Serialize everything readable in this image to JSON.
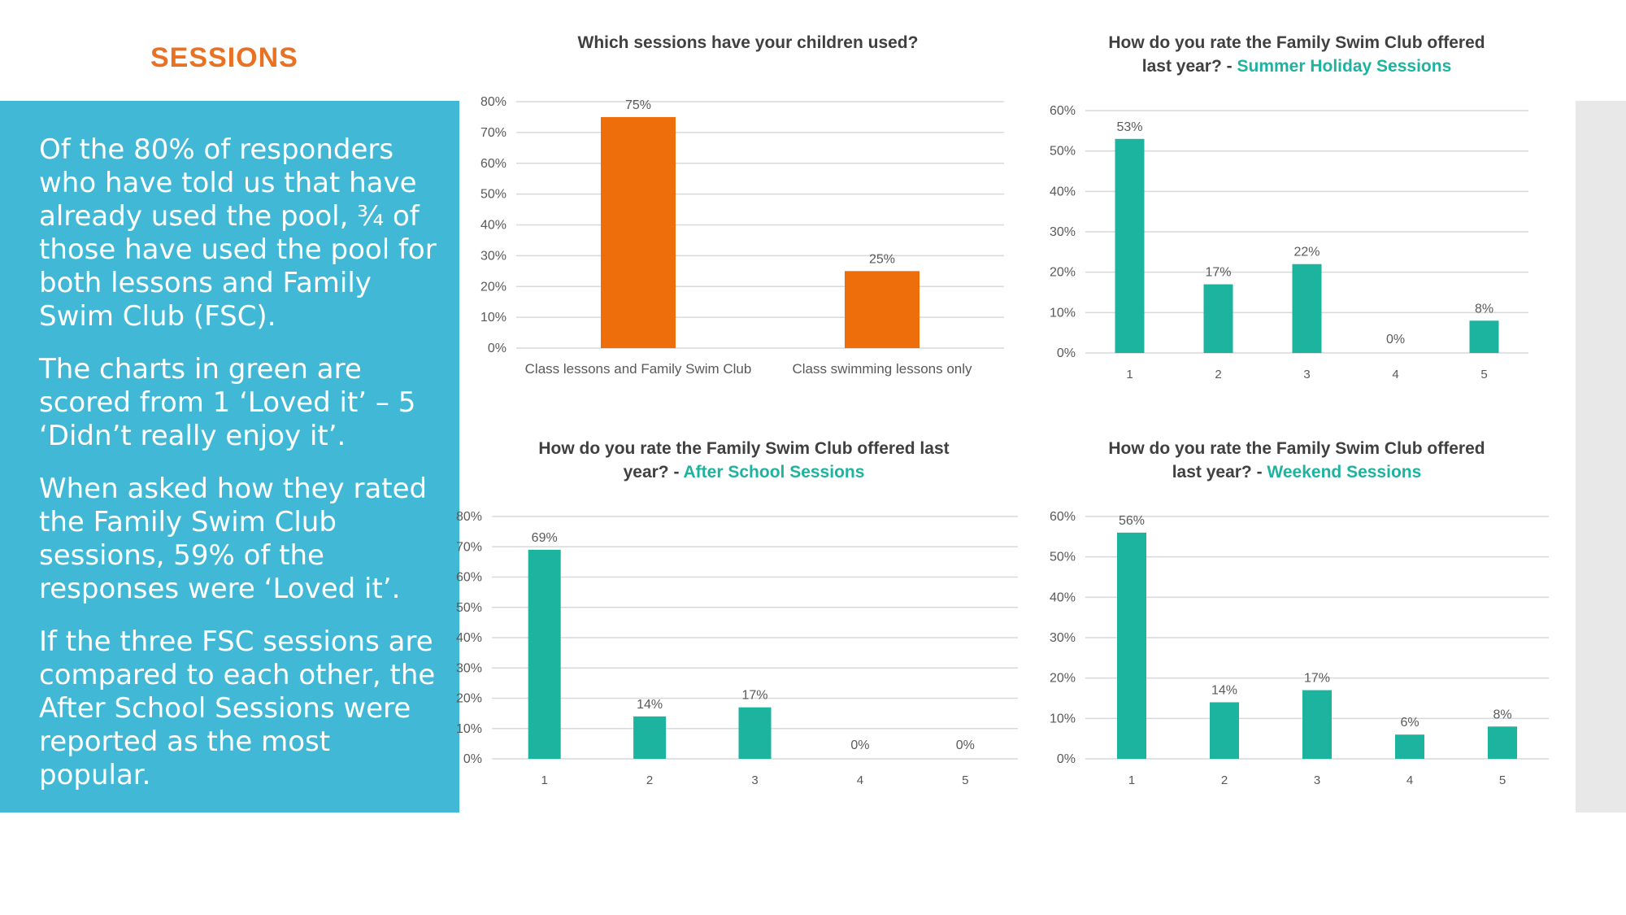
{
  "section_title": "SESSIONS",
  "colors": {
    "title_orange": "#E97124",
    "panel_blue": "#41B8D5",
    "bar_orange": "#ED6E0A",
    "bar_teal": "#1CB39F",
    "accent_teal": "#1CB39F",
    "strip_grey": "#E8E8E8"
  },
  "side_panel": {
    "paragraphs": [
      "Of the 80% of responders who have told us that have already used the pool, ¾ of those have used the pool for both lessons and Family Swim Club (FSC).",
      "The charts in green are scored from 1 ‘Loved it’ – 5 ‘Didn’t really enjoy it’.",
      "When asked how they rated the Family Swim Club sessions, 59% of the responses were ‘Loved it’.",
      "If the three FSC sessions are compared to each other, the After School Sessions were reported as the most popular."
    ]
  },
  "chart_data": [
    {
      "type": "bar",
      "title": "Which sessions have your children used?",
      "title_accent": "",
      "categories": [
        "Class lessons and Family Swim Club",
        "Class swimming lessons only"
      ],
      "values": [
        75,
        25
      ],
      "data_labels": [
        "75%",
        "25%"
      ],
      "ylim": [
        0,
        80
      ],
      "yticks": [
        "0%",
        "10%",
        "20%",
        "30%",
        "40%",
        "50%",
        "60%",
        "70%",
        "80%"
      ],
      "grid": true,
      "color": "#ED6E0A"
    },
    {
      "type": "bar",
      "title": "How do you rate the Family Swim Club offered last year? - ",
      "title_accent": "Summer Holiday Sessions",
      "categories": [
        "1",
        "2",
        "3",
        "4",
        "5"
      ],
      "values": [
        53,
        17,
        22,
        0,
        8
      ],
      "data_labels": [
        "53%",
        "17%",
        "22%",
        "0%",
        "8%"
      ],
      "ylim": [
        0,
        60
      ],
      "yticks": [
        "0%",
        "10%",
        "20%",
        "30%",
        "40%",
        "50%",
        "60%"
      ],
      "grid": true,
      "color": "#1CB39F"
    },
    {
      "type": "bar",
      "title": "How do you rate the Family Swim Club offered last year? - ",
      "title_accent": "After School Sessions",
      "categories": [
        "1",
        "2",
        "3",
        "4",
        "5"
      ],
      "values": [
        69,
        14,
        17,
        0,
        0
      ],
      "data_labels": [
        "69%",
        "14%",
        "17%",
        "0%",
        "0%"
      ],
      "ylim": [
        0,
        80
      ],
      "yticks": [
        "0%",
        "10%",
        "20%",
        "30%",
        "40%",
        "50%",
        "60%",
        "70%",
        "80%"
      ],
      "grid": true,
      "color": "#1CB39F"
    },
    {
      "type": "bar",
      "title": "How do you rate the Family Swim Club offered last year? - ",
      "title_accent": "Weekend Sessions",
      "categories": [
        "1",
        "2",
        "3",
        "4",
        "5"
      ],
      "values": [
        56,
        14,
        17,
        6,
        8
      ],
      "data_labels": [
        "56%",
        "14%",
        "17%",
        "6%",
        "8%"
      ],
      "ylim": [
        0,
        60
      ],
      "yticks": [
        "0%",
        "10%",
        "20%",
        "30%",
        "40%",
        "50%",
        "60%"
      ],
      "grid": true,
      "color": "#1CB39F"
    }
  ]
}
